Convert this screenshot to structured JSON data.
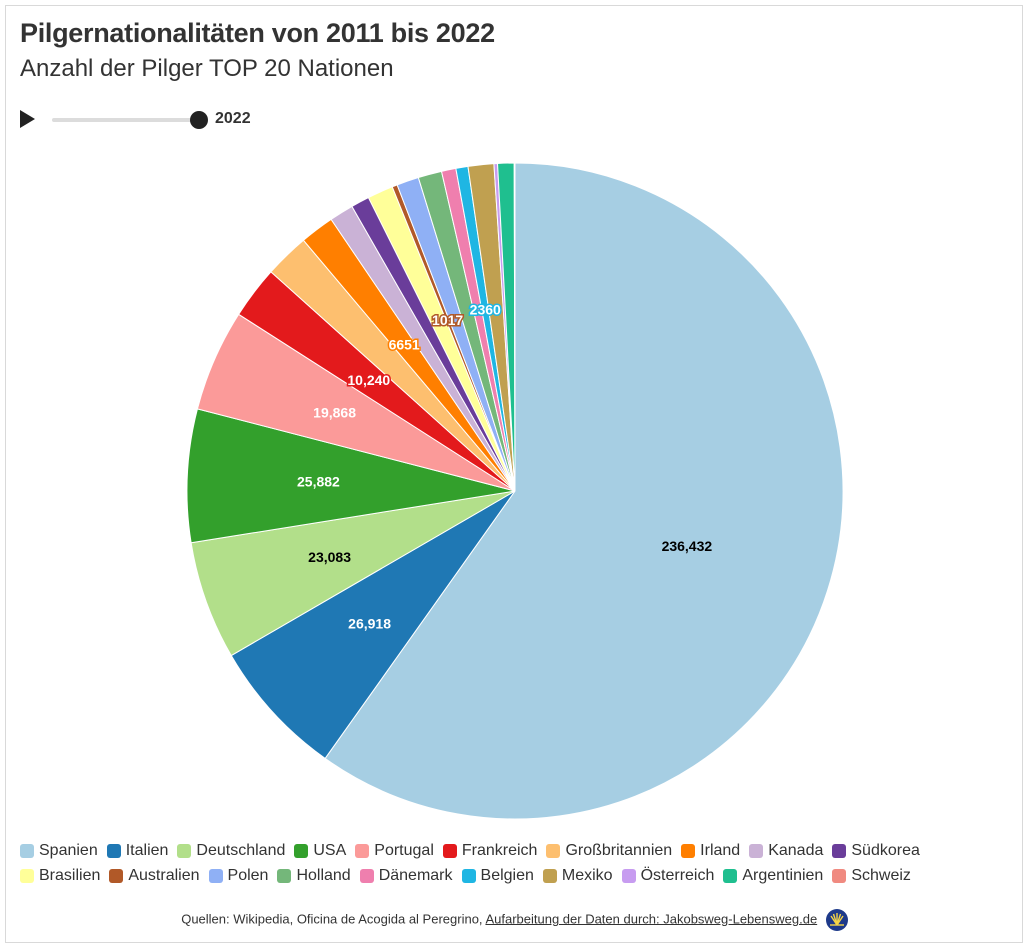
{
  "header": {
    "title": "Pilgernationalitäten von 2011 bis 2022",
    "subtitle": "Anzahl der Pilger TOP 20 Nationen"
  },
  "timeline": {
    "year": "2022",
    "progress": 1.0
  },
  "chart_data": {
    "type": "pie",
    "title": "Pilgernationalitäten von 2011 bis 2022",
    "subtitle": "Anzahl der Pilger TOP 20 Nationen",
    "legend_position": "bottom",
    "slices": [
      {
        "name": "Spanien",
        "value": 236432,
        "label": "236,432",
        "color": "#a6cee3",
        "label_color": "#000000"
      },
      {
        "name": "Italien",
        "value": 26918,
        "label": "26,918",
        "color": "#1f78b4",
        "label_color": "#ffffff"
      },
      {
        "name": "Deutschland",
        "value": 23083,
        "label": "23,083",
        "color": "#b2df8a",
        "label_color": "#000000"
      },
      {
        "name": "USA",
        "value": 25882,
        "label": "25,882",
        "color": "#33a02c",
        "label_color": "#ffffff"
      },
      {
        "name": "Portugal",
        "value": 19868,
        "label": "19,868",
        "color": "#fb9a99",
        "label_color": "#ffffff"
      },
      {
        "name": "Frankreich",
        "value": 10240,
        "label": "10,240",
        "color": "#e31a1c",
        "label_color": "#ffffff"
      },
      {
        "name": "Großbritannien",
        "value": 8700,
        "label": "",
        "color": "#fdbf6f",
        "label_color": "#ffffff"
      },
      {
        "name": "Irland",
        "value": 6651,
        "label": "6651",
        "color": "#ff7f00",
        "label_color": "#ffffff"
      },
      {
        "name": "Kanada",
        "value": 4700,
        "label": "",
        "color": "#cab2d6",
        "label_color": "#ffffff"
      },
      {
        "name": "Südkorea",
        "value": 3600,
        "label": "",
        "color": "#6a3d9a",
        "label_color": "#ffffff"
      },
      {
        "name": "Brasilien",
        "value": 5000,
        "label": "",
        "color": "#ffff99",
        "label_color": "#333333"
      },
      {
        "name": "Australien",
        "value": 1017,
        "label": "1017",
        "color": "#b15928",
        "label_color": "#ffffff"
      },
      {
        "name": "Polen",
        "value": 4300,
        "label": "",
        "color": "#8fb0f5",
        "label_color": "#ffffff"
      },
      {
        "name": "Holland",
        "value": 4600,
        "label": "",
        "color": "#74b77a",
        "label_color": "#ffffff"
      },
      {
        "name": "Dänemark",
        "value": 2800,
        "label": "",
        "color": "#ef7fae",
        "label_color": "#ffffff"
      },
      {
        "name": "Belgien",
        "value": 2360,
        "label": "2360",
        "color": "#1fb6e3",
        "label_color": "#ffffff"
      },
      {
        "name": "Mexiko",
        "value": 5000,
        "label": "",
        "color": "#c0a050",
        "label_color": "#ffffff"
      },
      {
        "name": "Österreich",
        "value": 700,
        "label": "",
        "color": "#c79cf0",
        "label_color": "#ffffff"
      },
      {
        "name": "Argentinien",
        "value": 3200,
        "label": "",
        "color": "#1fbf8f",
        "label_color": "#ffffff"
      },
      {
        "name": "Schweiz",
        "value": 150,
        "label": "",
        "color": "#f08a80",
        "label_color": "#ffffff"
      }
    ]
  },
  "footer": {
    "sources": "Quellen: Wikipedia, Oficina de Acogida al Peregrino,",
    "link": "Aufarbeitung der Daten durch: Jakobsweg-Lebensweg.de",
    "logo_icon": "scallop-shell-icon"
  }
}
